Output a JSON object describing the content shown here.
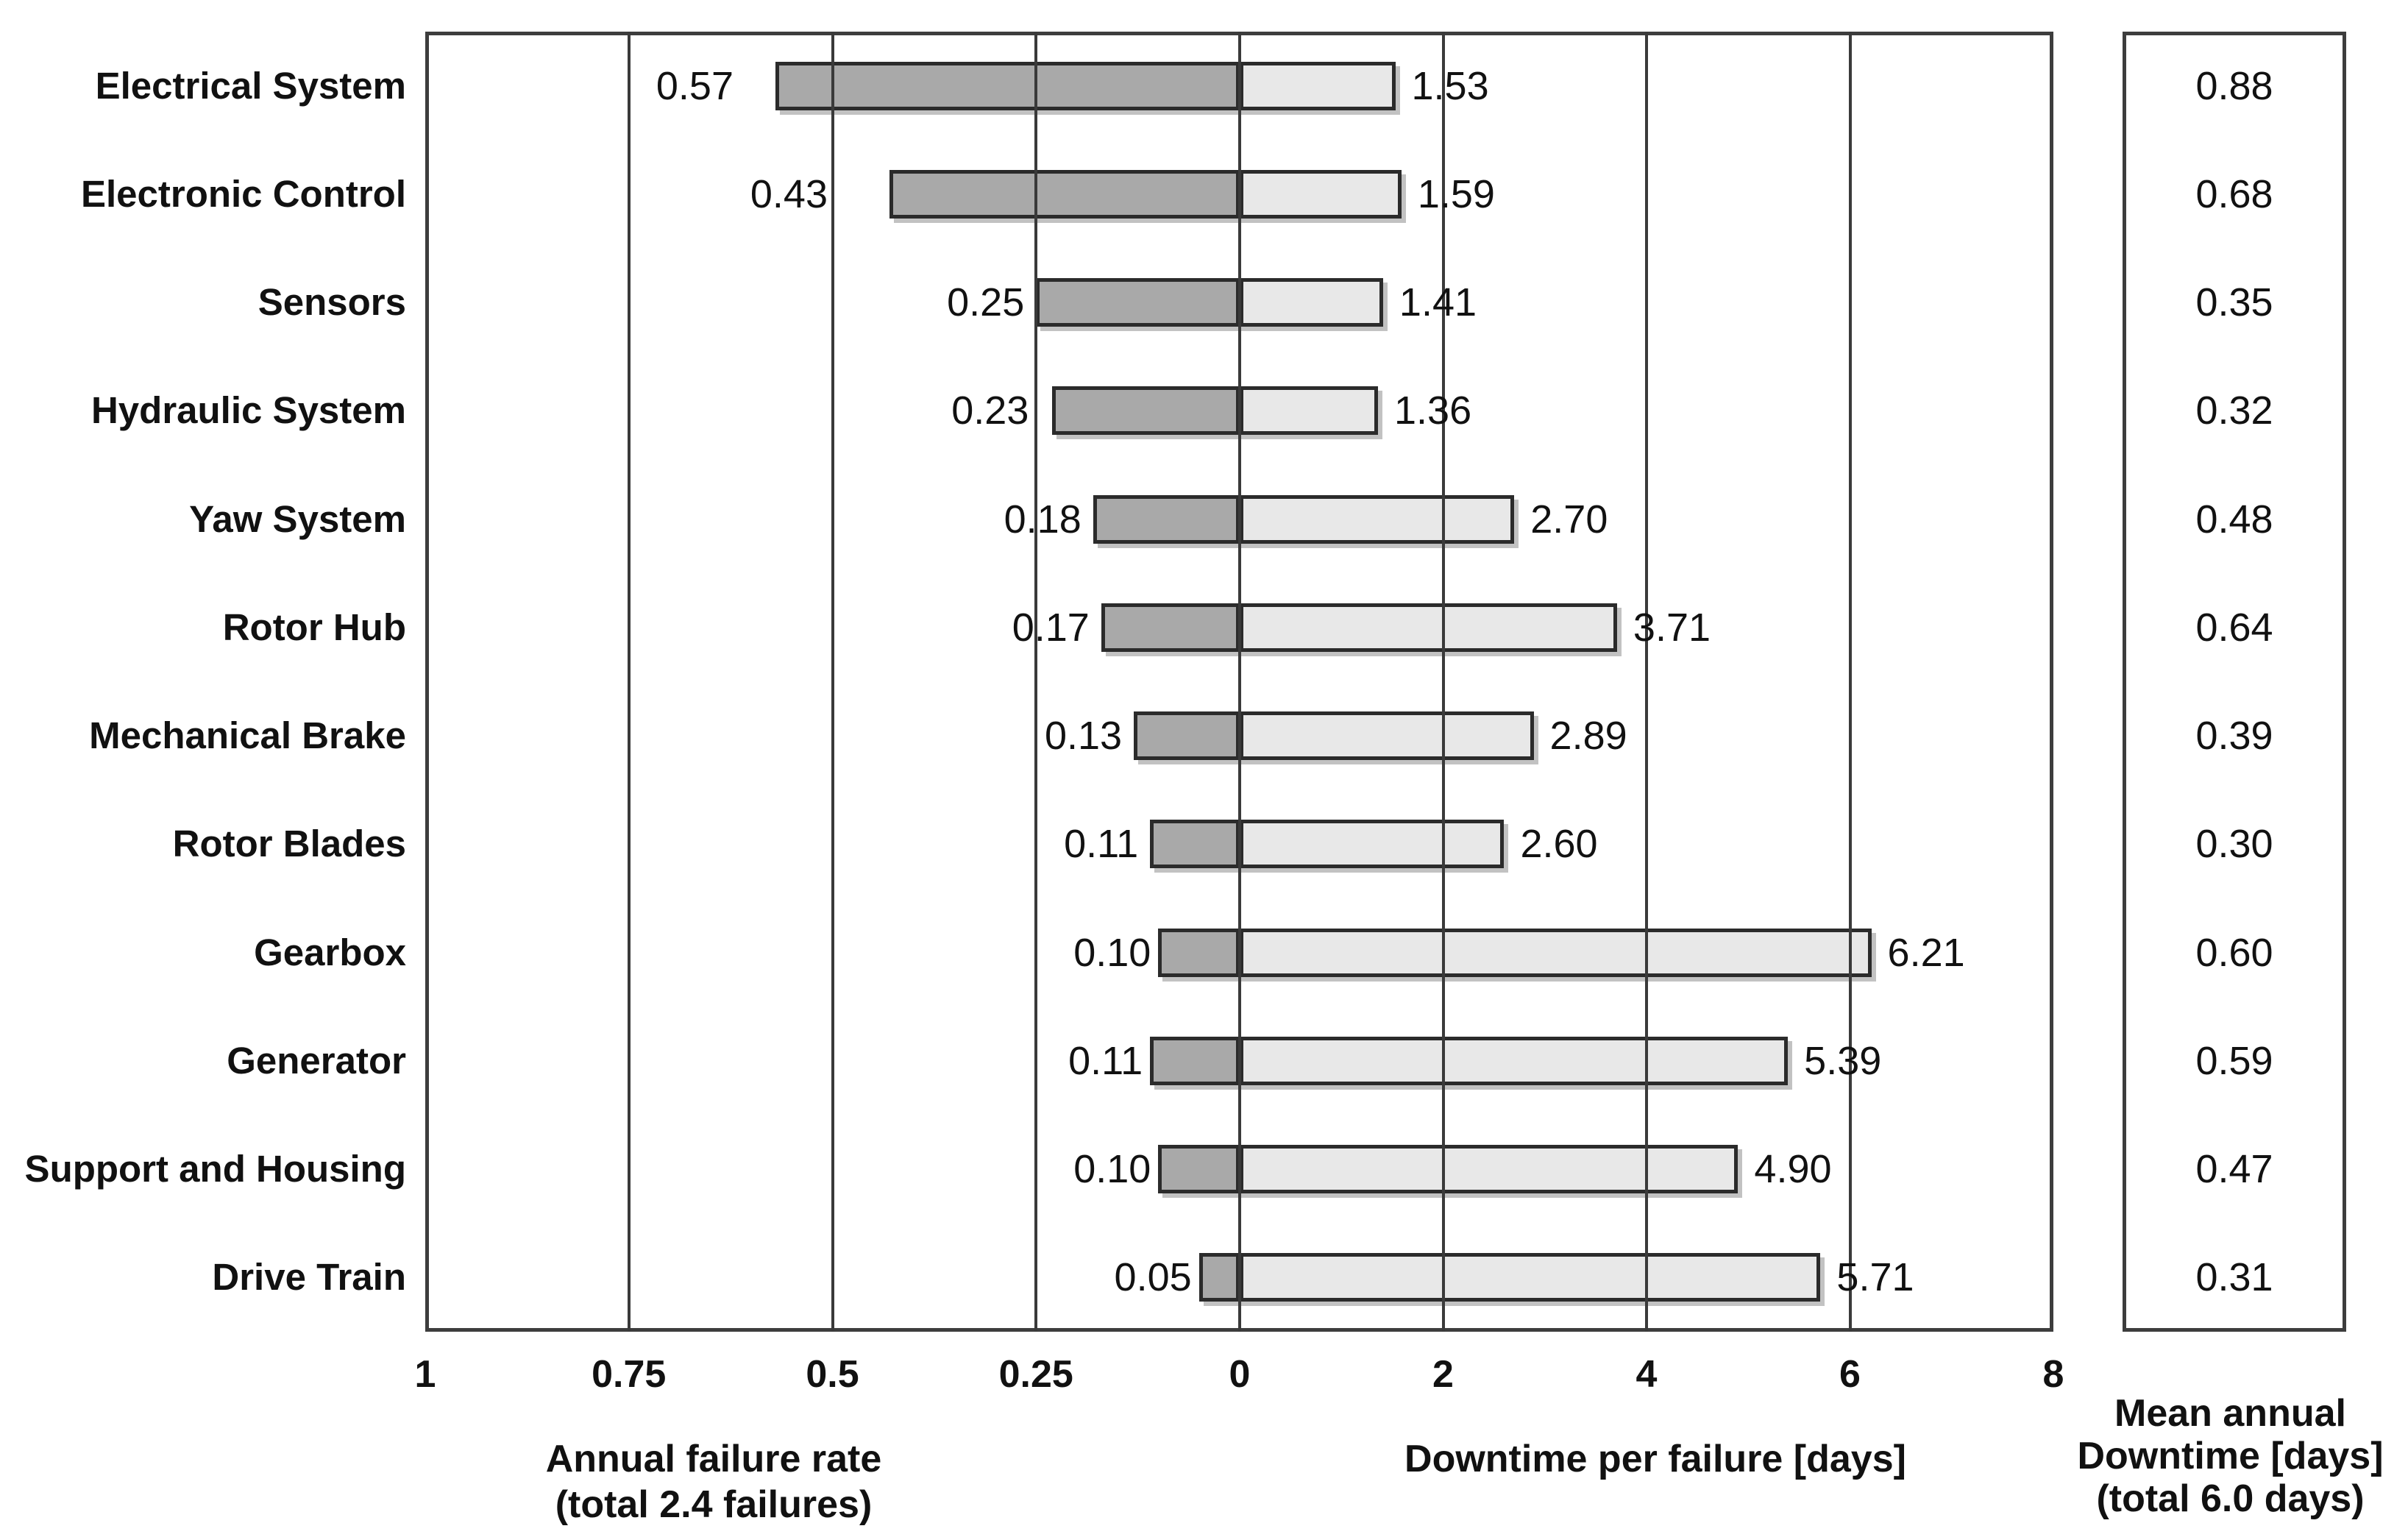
{
  "chart_data": {
    "type": "bar",
    "variant": "bidirectional-horizontal",
    "categories": [
      "Electrical System",
      "Electronic Control",
      "Sensors",
      "Hydraulic System",
      "Yaw System",
      "Rotor Hub",
      "Mechanical Brake",
      "Rotor Blades",
      "Gearbox",
      "Generator",
      "Support and Housing",
      "Drive Train"
    ],
    "series": [
      {
        "name": "Annual failure rate",
        "axis": "left",
        "values": [
          "0.57",
          "0.43",
          "0.25",
          "0.23",
          "0.18",
          "0.17",
          "0.13",
          "0.11",
          "0.10",
          "0.11",
          "0.10",
          "0.05"
        ]
      },
      {
        "name": "Downtime per failure [days]",
        "axis": "right",
        "values": [
          "1.53",
          "1.59",
          "1.41",
          "1.36",
          "2.70",
          "3.71",
          "2.89",
          "2.60",
          "6.21",
          "5.39",
          "4.90",
          "5.71"
        ]
      },
      {
        "name": "Mean annual Downtime [days]",
        "axis": "panel",
        "values": [
          "0.88",
          "0.68",
          "0.35",
          "0.32",
          "0.48",
          "0.64",
          "0.39",
          "0.30",
          "0.60",
          "0.59",
          "0.47",
          "0.31"
        ]
      }
    ],
    "left_axis": {
      "range": [
        0,
        1
      ],
      "direction": "reversed",
      "ticks": [
        "1",
        "0.75",
        "0.5",
        "0.25",
        "0"
      ],
      "gridline_values": [
        "0.75",
        "0.5",
        "0.25",
        "0"
      ],
      "title_lines": [
        "Annual failure rate",
        "(total 2.4 failures)"
      ]
    },
    "right_axis": {
      "range": [
        0,
        8
      ],
      "ticks": [
        "2",
        "4",
        "6",
        "8"
      ],
      "gridline_values": [
        "2",
        "4",
        "6"
      ],
      "title": "Downtime per failure [days]"
    },
    "panel": {
      "title_lines": [
        "Mean annual",
        "Downtime [days]",
        "(total 6.0 days)"
      ]
    },
    "colors": {
      "bar_failure_rate": "#a9a9a9",
      "bar_downtime": "#e8e8e8",
      "bar_border": "#2b2b2b",
      "gridline": "#3a3a3a",
      "box_border": "#3d3d3d",
      "text": "#111111",
      "background": "#ffffff"
    },
    "legend": "none",
    "grid": "vertical-only"
  }
}
